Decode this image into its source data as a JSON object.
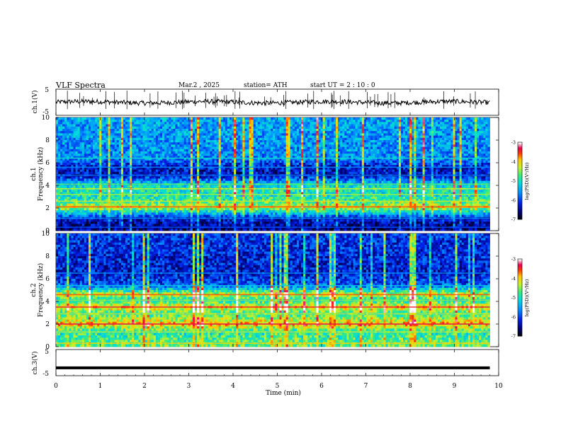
{
  "header": {
    "title": "VLF  Spectra",
    "date": "Mar.2  , 2025",
    "station": "station= ATH",
    "start": "start  UT  =   2  : 10 : 0"
  },
  "chart_data": [
    {
      "type": "line",
      "panel": "ch.1",
      "ylabel": "ch.1(V)",
      "ylim": [
        -5,
        5
      ],
      "yticks": [
        "5",
        "-5"
      ],
      "xlim": [
        0,
        10
      ],
      "series": [
        {
          "values_note": "noisy waveform centred near 0 V with amplitude about 1 V",
          "baseline": 0
        }
      ]
    },
    {
      "type": "heatmap",
      "panel": "ch.1",
      "ylabel": "ch.1\nFrequency (kHz)",
      "ylabel_line1": "ch.1",
      "ylabel_line2": "Frequency  (kHz)",
      "ylim": [
        0,
        10
      ],
      "yticks": [
        "0",
        "2",
        "4",
        "6",
        "8",
        "10"
      ],
      "xlim": [
        0,
        9.8
      ],
      "colorbar": {
        "label": "log(PSD)(V²/Hz)",
        "ticks": [
          "-3",
          "-4",
          "-5",
          "-6",
          "-7"
        ],
        "range": [
          -7,
          -3
        ]
      },
      "bands_khz": [
        0.3,
        1.1,
        2.1,
        2.6,
        3.2,
        3.7,
        4.1,
        4.9,
        5.6,
        6.4
      ],
      "band_levels": [
        -6.5,
        -6.2,
        -4.2,
        -4.8,
        -5.0,
        -4.9,
        -5.2,
        -6.3,
        -6.2,
        -5.6
      ]
    },
    {
      "type": "heatmap",
      "panel": "ch.2",
      "ylabel_line1": "ch.2",
      "ylabel_line2": "Frequency  (kHz)",
      "ylim": [
        0,
        10
      ],
      "yticks": [
        "0",
        "2",
        "4",
        "6",
        "8",
        "10"
      ],
      "xlim": [
        0,
        9.8
      ],
      "colorbar": {
        "label": "log(PSD)(V²/Hz)",
        "ticks": [
          "-3",
          "-4",
          "-5",
          "-6",
          "-7"
        ],
        "range": [
          -7,
          -3
        ]
      },
      "bands_khz": [
        0.3,
        1.3,
        2.0,
        2.9,
        3.5,
        4.1,
        4.6,
        5.4,
        6.5
      ],
      "band_levels": [
        -4.6,
        -4.9,
        -3.9,
        -4.8,
        -4.0,
        -5.0,
        -4.2,
        -5.8,
        -6.2
      ]
    },
    {
      "type": "line",
      "panel": "ch.3",
      "ylabel": "ch.3(V)",
      "ylim": [
        -5,
        5
      ],
      "yticks": [
        "5",
        "-5"
      ],
      "xlim": [
        0,
        10
      ],
      "series": [
        {
          "values_note": "flat thick trace",
          "baseline": -2
        }
      ]
    }
  ],
  "xaxis": {
    "label": "Time  (min)",
    "ticks": [
      "0",
      "1",
      "2",
      "3",
      "4",
      "5",
      "6",
      "7",
      "8",
      "9",
      "10"
    ],
    "range": [
      0,
      10
    ]
  }
}
